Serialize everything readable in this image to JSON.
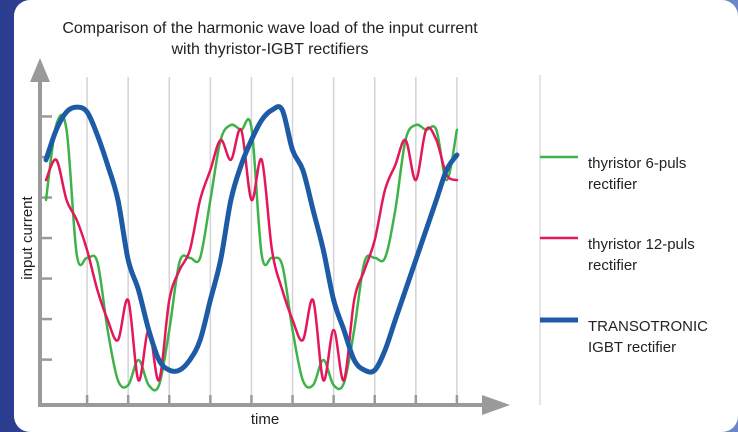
{
  "chart_data": {
    "type": "line",
    "title": "Comparison of the harmonic wave load of the input current with thyristor-IGBT rectifiers",
    "x_label": "time",
    "y_label": "input current",
    "x": [
      0,
      0.25,
      0.5,
      0.75,
      1,
      1.25,
      1.5,
      1.75,
      2,
      2.25,
      2.5,
      2.75,
      3,
      3.25,
      3.5,
      3.75,
      4,
      4.25,
      4.5,
      4.75,
      5,
      5.25,
      5.5,
      5.75,
      6,
      6.25,
      6.5,
      6.75,
      7,
      7.25,
      7.5,
      7.75,
      8,
      8.25,
      8.5,
      8.75,
      9,
      9.25,
      9.5,
      9.75,
      10
    ],
    "series": [
      {
        "name": "thyristor 6-puls rectifier",
        "color": "#3db34a",
        "values": [
          0.94,
          2.79,
          2.67,
          -0.42,
          -0.49,
          -0.59,
          -2.27,
          -3.51,
          -3.63,
          -3.01,
          -3.63,
          -3.63,
          -2.27,
          -0.59,
          -0.49,
          -0.49,
          0.94,
          2.42,
          2.79,
          2.67,
          2.72,
          -0.42,
          -0.49,
          -0.67,
          -2.27,
          -3.51,
          -3.63,
          -3.01,
          -3.63,
          -3.58,
          -2.27,
          -0.59,
          -0.49,
          -0.49,
          0.69,
          2.42,
          2.79,
          2.67,
          2.67,
          1.43,
          2.67
        ]
      },
      {
        "name": "thyristor 12-puls rectifier",
        "color": "#e3175a",
        "values": [
          1.43,
          1.93,
          0.94,
          0.44,
          -0.3,
          -1.28,
          -2.02,
          -2.52,
          -1.53,
          -3.51,
          -2.27,
          -3.51,
          -1.53,
          -0.79,
          -0.3,
          0.94,
          1.68,
          2.42,
          1.93,
          2.67,
          0.94,
          1.93,
          -0.3,
          -1.28,
          -2.02,
          -2.52,
          -1.53,
          -3.51,
          -2.27,
          -3.51,
          -1.53,
          -0.79,
          -0.05,
          1.19,
          1.8,
          2.42,
          1.43,
          2.67,
          2.42,
          1.56,
          1.43
        ]
      },
      {
        "name": "TRANSOTRONIC IGBT rectifier",
        "color": "#1e5ba6",
        "values": [
          1.93,
          2.67,
          3.11,
          3.23,
          3.11,
          2.54,
          1.8,
          0.94,
          -0.54,
          -1.28,
          -2.27,
          -3.01,
          -3.26,
          -3.26,
          -3.01,
          -2.52,
          -1.53,
          -0.54,
          0.94,
          1.8,
          2.42,
          2.91,
          3.16,
          3.16,
          2.17,
          1.68,
          0.69,
          -0.3,
          -1.53,
          -2.27,
          -3.01,
          -3.26,
          -3.26,
          -2.77,
          -2.02,
          -1.28,
          -0.54,
          0.2,
          0.94,
          1.68,
          2.05
        ]
      }
    ],
    "xlim": [
      0,
      11
    ],
    "ylim": [
      -4.12,
      4.27
    ],
    "xticks": [
      1,
      2,
      3,
      4,
      5,
      6,
      7,
      8,
      9,
      10
    ],
    "yticks": [
      -3,
      -2,
      -1,
      0,
      1,
      2,
      3
    ],
    "grid": "x",
    "legend": "right"
  }
}
